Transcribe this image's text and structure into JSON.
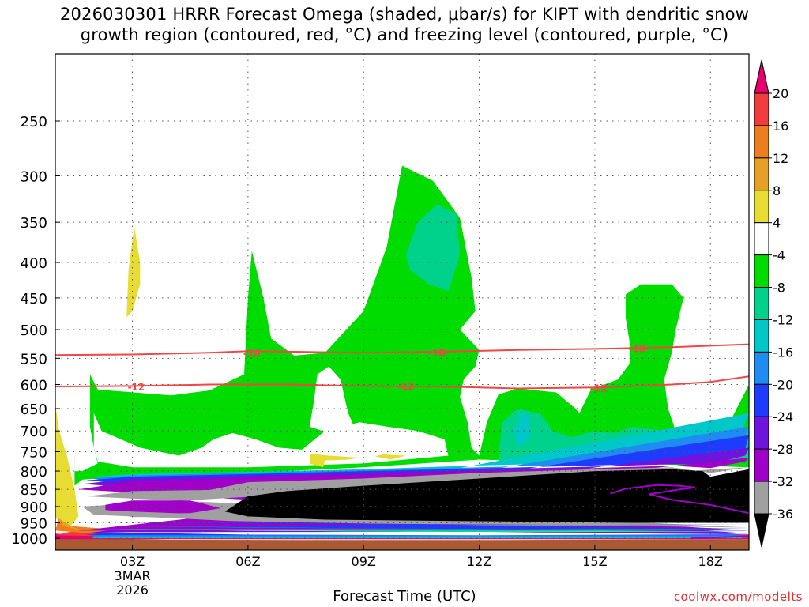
{
  "title_line1": "2026030301 HRRR Forecast Omega (shaded, μbar/s) for KIPT with dendritic snow",
  "title_line2": "growth region (contoured, red, °C) and freezing level (contoured, purple, °C)",
  "x_axis_title": "Forecast Time (UTC)",
  "credit": "coolwx.com/modelts",
  "chart_data": {
    "type": "heatmap",
    "title": "2026030301 HRRR Forecast Omega (shaded, μbar/s) for KIPT with dendritic snow growth region (contoured, red, °C) and freezing level (contoured, purple, °C)",
    "xlabel": "Forecast Time (UTC)",
    "ylabel": "",
    "x_ticks": [
      {
        "hour": 3,
        "label": "03Z",
        "sublabel1": "3MAR",
        "sublabel2": "2026"
      },
      {
        "hour": 6,
        "label": "06Z"
      },
      {
        "hour": 9,
        "label": "09Z"
      },
      {
        "hour": 12,
        "label": "12Z"
      },
      {
        "hour": 15,
        "label": "15Z"
      },
      {
        "hour": 18,
        "label": "18Z"
      }
    ],
    "xlim": [
      1,
      19
    ],
    "y_ticks": [
      250,
      300,
      350,
      400,
      450,
      500,
      550,
      600,
      650,
      700,
      750,
      800,
      850,
      900,
      950,
      1000
    ],
    "ylim": [
      200,
      1040
    ],
    "y_scale": "log-pressure",
    "grid": true,
    "colorbar": {
      "labels": [
        "20",
        "16",
        "12",
        "8",
        "4",
        "-4",
        "-8",
        "-12",
        "-16",
        "-20",
        "-24",
        "-28",
        "-32",
        "-36"
      ],
      "levels": [
        {
          "from": 20,
          "to": 24,
          "color": "#e6006e"
        },
        {
          "from": 16,
          "to": 20,
          "color": "#f03c3c"
        },
        {
          "from": 12,
          "to": 16,
          "color": "#ee7d1e"
        },
        {
          "from": 8,
          "to": 12,
          "color": "#e6a028"
        },
        {
          "from": 4,
          "to": 8,
          "color": "#e6dc32"
        },
        {
          "from": -4,
          "to": 4,
          "color": "#ffffff"
        },
        {
          "from": -8,
          "to": -4,
          "color": "#00dc00"
        },
        {
          "from": -12,
          "to": -8,
          "color": "#00d28c"
        },
        {
          "from": -16,
          "to": -12,
          "color": "#00c8c8"
        },
        {
          "from": -20,
          "to": -16,
          "color": "#1e8cf0"
        },
        {
          "from": -24,
          "to": -20,
          "color": "#1e3cff"
        },
        {
          "from": -28,
          "to": -24,
          "color": "#6e14dc"
        },
        {
          "from": -32,
          "to": -28,
          "color": "#a000c8"
        },
        {
          "from": -36,
          "to": -32,
          "color": "#a0a0a0"
        },
        {
          "from": -40,
          "to": -36,
          "color": "#000000"
        }
      ]
    },
    "series": [
      {
        "name": "-12",
        "color": "#f04646",
        "points": [
          [
            1,
            604
          ],
          [
            3,
            603
          ],
          [
            5,
            600
          ],
          [
            7,
            600
          ],
          [
            9,
            603
          ],
          [
            11,
            604
          ],
          [
            12,
            606
          ],
          [
            13,
            608
          ],
          [
            15,
            606
          ],
          [
            17,
            600
          ],
          [
            18,
            595
          ],
          [
            19,
            584
          ]
        ]
      },
      {
        "name": "-18",
        "color": "#f04646",
        "points": [
          [
            1,
            544
          ],
          [
            3,
            543
          ],
          [
            5,
            540
          ],
          [
            6,
            537
          ],
          [
            8,
            539
          ],
          [
            9,
            540
          ],
          [
            11,
            538
          ],
          [
            13,
            535
          ],
          [
            15,
            533
          ],
          [
            17,
            530
          ],
          [
            19,
            525
          ]
        ]
      }
    ],
    "contour_labels": [
      {
        "text": "-12",
        "hour": 3.1,
        "pressure": 604
      },
      {
        "text": "-12",
        "hour": 10.1,
        "pressure": 603
      },
      {
        "text": "-12",
        "hour": 15.1,
        "pressure": 606
      },
      {
        "text": "-18",
        "hour": 6.1,
        "pressure": 540
      },
      {
        "text": "-18",
        "hour": 10.9,
        "pressure": 539
      },
      {
        "text": "-18",
        "hour": 16.1,
        "pressure": 532
      }
    ]
  }
}
